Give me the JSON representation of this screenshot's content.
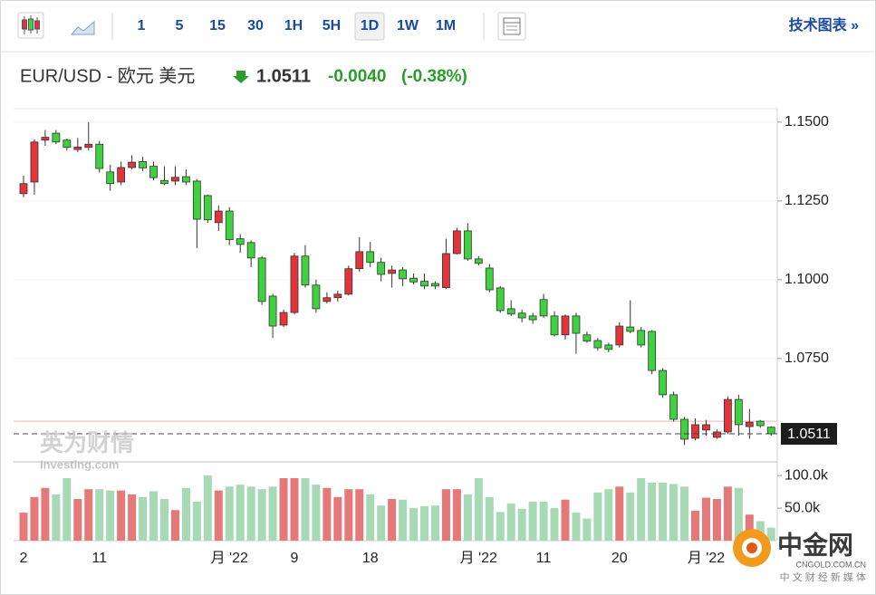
{
  "toolbar": {
    "intervals": [
      "1",
      "5",
      "15",
      "30",
      "1H",
      "5H",
      "1D",
      "1W",
      "1M"
    ],
    "selected": 6,
    "link": "技术图表 »"
  },
  "quote": {
    "symbol": "EUR/USD - 欧元 美元",
    "price": "1.0511",
    "change": "-0.0040",
    "change_pct": "(-0.38%)"
  },
  "watermarks": {
    "brand": "英为财情",
    "brand_sub": "Investing.com",
    "logo": "中金网",
    "logo_domain": "CNGOLD.COM.CN",
    "logo_tagline": "中 文 财 经 新 媒 体"
  },
  "chart_data": {
    "type": "candlestick",
    "categories": [
      "2",
      null,
      null,
      null,
      null,
      null,
      null,
      "11",
      null,
      null,
      null,
      null,
      null,
      null,
      null,
      null,
      null,
      null,
      null,
      "月 '22",
      null,
      null,
      null,
      null,
      null,
      "9",
      null,
      null,
      null,
      null,
      null,
      null,
      "18",
      null,
      null,
      null,
      null,
      null,
      null,
      null,
      null,
      null,
      "月 '22",
      null,
      null,
      null,
      null,
      null,
      "11",
      null,
      null,
      null,
      null,
      null,
      null,
      "20",
      null,
      null,
      null,
      null,
      null,
      null,
      null,
      "月 '22",
      null,
      null,
      null,
      null,
      null,
      null
    ],
    "open": [
      1.1273,
      1.131,
      1.1443,
      1.1465,
      1.1443,
      1.1413,
      1.142,
      1.143,
      1.1342,
      1.131,
      1.1356,
      1.1375,
      1.136,
      1.1315,
      1.1313,
      1.1327,
      1.1313,
      1.1267,
      1.1181,
      1.1218,
      1.113,
      1.1118,
      1.1069,
      1.0948,
      1.0856,
      1.0896,
      1.1075,
      1.0983,
      1.0931,
      1.0943,
      1.0954,
      1.1035,
      1.1089,
      1.1055,
      1.102,
      1.1031,
      1.1005,
      1.0995,
      1.0988,
      1.0975,
      1.1083,
      1.1155,
      1.1066,
      1.1037,
      1.0974,
      1.0908,
      1.0894,
      1.0885,
      1.0937,
      1.0885,
      1.0825,
      1.0885,
      1.0825,
      1.0807,
      1.0793,
      1.0793,
      1.085,
      1.0839,
      1.0836,
      1.0712,
      1.0635,
      1.0557,
      1.0497,
      1.0523,
      1.05,
      1.0517,
      1.062,
      1.0534,
      1.0551,
      1.0532
    ],
    "high": [
      1.133,
      1.1445,
      1.1475,
      1.1475,
      1.1447,
      1.145,
      1.15,
      1.144,
      1.1365,
      1.1375,
      1.1395,
      1.139,
      1.1375,
      1.136,
      1.136,
      1.135,
      1.132,
      1.127,
      1.1235,
      1.123,
      1.1145,
      1.1125,
      1.1075,
      1.0955,
      1.0905,
      1.1085,
      1.111,
      1.1,
      1.096,
      1.0965,
      1.1045,
      1.1135,
      1.112,
      1.107,
      1.1045,
      1.104,
      1.102,
      1.102,
      1.0995,
      1.113,
      1.1165,
      1.118,
      1.1075,
      1.105,
      1.098,
      1.0935,
      1.0905,
      1.0895,
      1.0955,
      1.09,
      1.089,
      1.0895,
      1.0835,
      1.0815,
      1.08,
      1.0865,
      1.0935,
      1.085,
      1.084,
      1.072,
      1.0645,
      1.0565,
      1.056,
      1.0555,
      1.0525,
      1.063,
      1.0635,
      1.059,
      1.0555,
      1.0535
    ],
    "low": [
      1.1262,
      1.127,
      1.1425,
      1.143,
      1.141,
      1.1405,
      1.141,
      1.134,
      1.1282,
      1.13,
      1.135,
      1.1345,
      1.1315,
      1.13,
      1.13,
      1.13,
      1.11,
      1.118,
      1.1155,
      1.111,
      1.1085,
      1.104,
      1.092,
      1.0815,
      1.085,
      1.089,
      1.0975,
      1.0895,
      1.0925,
      1.093,
      1.095,
      1.1025,
      1.104,
      1.0995,
      1.0975,
      1.098,
      1.0985,
      1.097,
      1.097,
      1.097,
      1.108,
      1.106,
      1.1045,
      1.096,
      1.0895,
      1.0885,
      1.0865,
      1.086,
      1.088,
      1.082,
      1.081,
      1.0765,
      1.08,
      1.0775,
      1.077,
      1.0785,
      1.083,
      1.0785,
      1.07,
      1.0625,
      1.055,
      1.0475,
      1.049,
      1.0505,
      1.0495,
      1.051,
      1.0505,
      1.0495,
      1.053,
      1.0505
    ],
    "close": [
      1.1305,
      1.1437,
      1.1452,
      1.1437,
      1.142,
      1.1421,
      1.143,
      1.1353,
      1.1305,
      1.1356,
      1.1373,
      1.1355,
      1.1324,
      1.1305,
      1.1325,
      1.131,
      1.1192,
      1.119,
      1.1218,
      1.1127,
      1.1112,
      1.1069,
      1.0931,
      1.0853,
      1.0896,
      1.1075,
      1.0983,
      1.0908,
      1.0943,
      1.0954,
      1.1035,
      1.1089,
      1.1055,
      1.1017,
      1.1031,
      1.1003,
      1.0993,
      1.098,
      1.098,
      1.1083,
      1.1155,
      1.1066,
      1.1052,
      1.0968,
      1.0902,
      1.0891,
      1.0879,
      1.0873,
      1.0885,
      1.0825,
      1.0885,
      1.083,
      1.0805,
      1.0784,
      1.0779,
      1.0853,
      1.0836,
      1.0793,
      1.0712,
      1.0635,
      1.0557,
      1.0494,
      1.054,
      1.054,
      1.0517,
      1.062,
      1.054,
      1.0548,
      1.0537,
      1.0511
    ],
    "up_color": "#e3343a",
    "down_color": "#3fd13f",
    "ylim": [
      1.0422,
      1.1537
    ],
    "yticks": [
      {
        "value": 1.15,
        "label": "1.1500"
      },
      {
        "value": 1.125,
        "label": "1.1250"
      },
      {
        "value": 1.1,
        "label": "1.1000"
      },
      {
        "value": 1.075,
        "label": "1.0750"
      }
    ],
    "grid": true,
    "last_price": 1.0511,
    "previous_close": 1.0551,
    "volume": {
      "values": [
        43000,
        67000,
        81000,
        71000,
        96000,
        64000,
        79000,
        79000,
        77000,
        77000,
        71000,
        67000,
        76000,
        64000,
        47000,
        81000,
        60000,
        100000,
        77000,
        83000,
        86000,
        83000,
        79000,
        83000,
        96000,
        96000,
        96000,
        86000,
        81000,
        67000,
        79000,
        79000,
        71000,
        54000,
        64000,
        63000,
        50000,
        53000,
        54000,
        79000,
        79000,
        71000,
        96000,
        67000,
        44000,
        57000,
        49000,
        60000,
        60000,
        50000,
        63000,
        43000,
        34000,
        74000,
        79000,
        83000,
        74000,
        96000,
        89000,
        89000,
        87000,
        83000,
        46000,
        66000,
        64000,
        83000,
        81000,
        40000,
        30000,
        20000
      ],
      "up_color": "#e57878",
      "down_color": "#a6d9b4",
      "ylim": [
        0,
        121000
      ],
      "yticks": [
        {
          "value": 100000,
          "label": "100.0k"
        },
        {
          "value": 50000,
          "label": "50.0k"
        }
      ]
    }
  }
}
